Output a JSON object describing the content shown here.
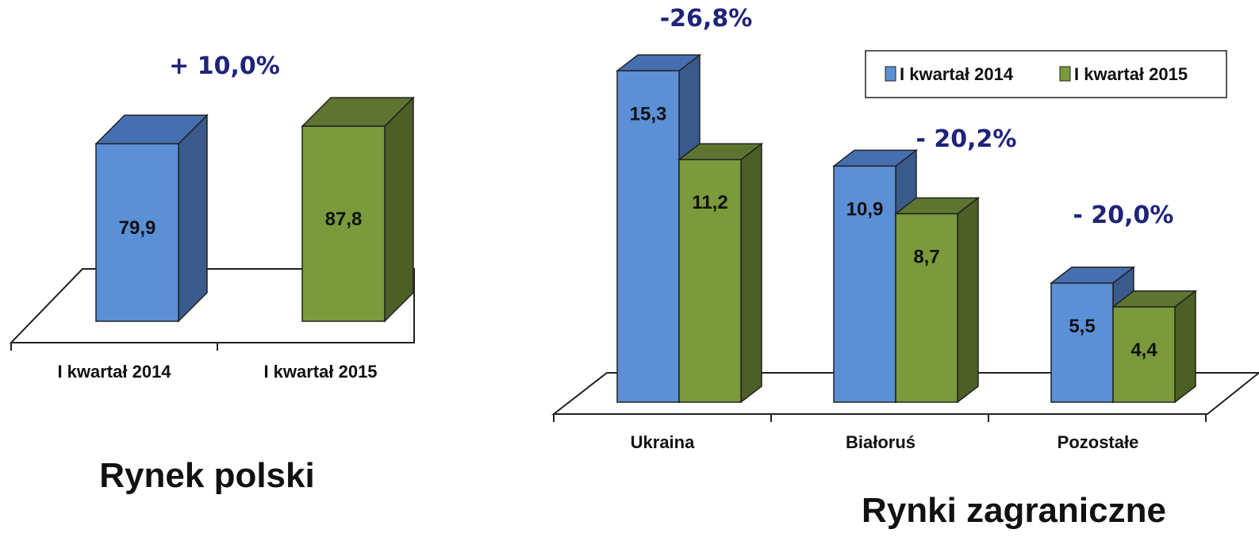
{
  "colors": {
    "series_2014_front": "#5b8fd6",
    "series_2014_side": "#3a5a8c",
    "series_2014_top": "#456fb0",
    "series_2015_front": "#7a9a3c",
    "series_2015_side": "#4d5e26",
    "series_2015_top": "#5d7530",
    "change_text": "#1f2378"
  },
  "chart_data": [
    {
      "type": "bar",
      "title": "Rynek polski",
      "categories": [
        "I kwartał 2014",
        "I kwartał 2015"
      ],
      "values": [
        79.9,
        87.8
      ],
      "value_labels": [
        "79,9",
        "87,8"
      ],
      "annotations": [
        "+ 10,0%"
      ],
      "ylim": [
        0,
        100
      ]
    },
    {
      "type": "bar",
      "title": "Rynki zagraniczne",
      "categories": [
        "Ukraina",
        "Białoruś",
        "Pozostałe"
      ],
      "series": [
        {
          "name": "I kwartał 2014",
          "values": [
            15.3,
            10.9,
            5.5
          ],
          "value_labels": [
            "15,3",
            "10,9",
            "5,5"
          ]
        },
        {
          "name": "I kwartał 2015",
          "values": [
            11.2,
            8.7,
            4.4
          ],
          "value_labels": [
            "11,2",
            "8,7",
            "4,4"
          ]
        }
      ],
      "annotations": [
        "-26,8%",
        "- 20,2%",
        "- 20,0%"
      ],
      "legend": "top-right",
      "ylim": [
        0,
        16
      ]
    }
  ]
}
